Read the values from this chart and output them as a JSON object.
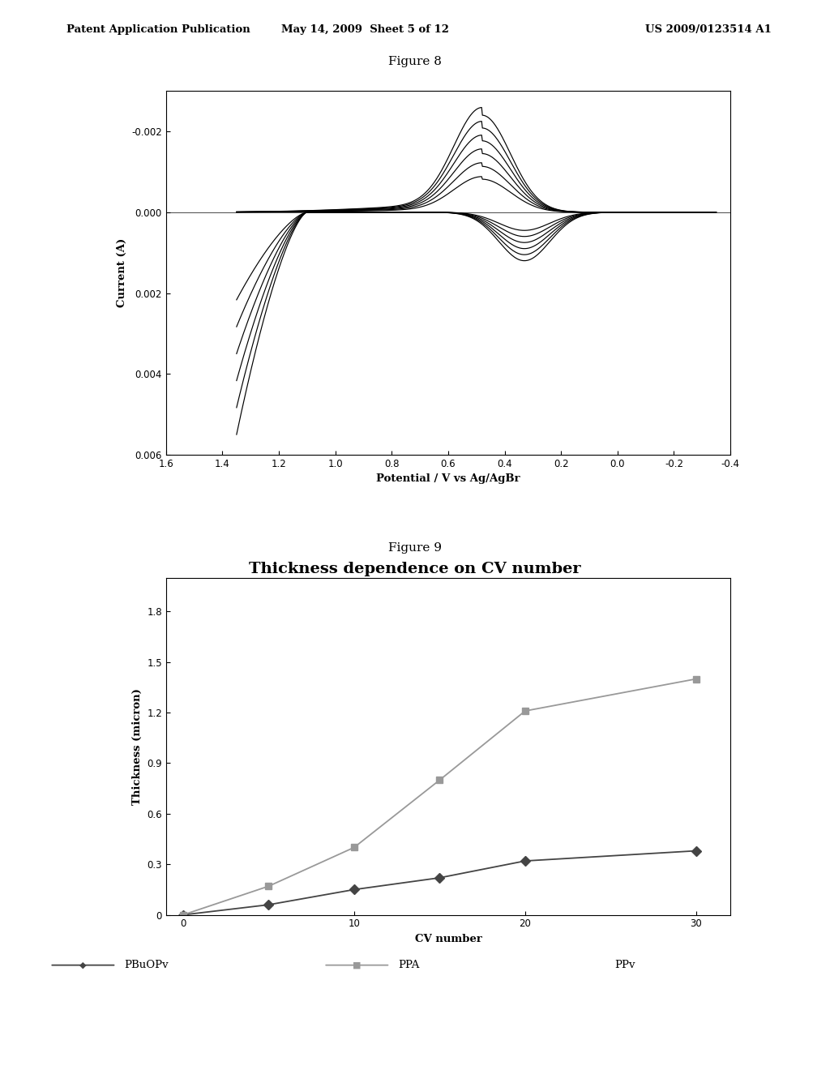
{
  "fig8": {
    "title": "Figure 8",
    "xlabel": "Potential / V vs Ag/AgBr",
    "ylabel": "Current (A)",
    "xlim": [
      1.6,
      -0.4
    ],
    "ylim": [
      0.006,
      -0.003
    ],
    "xticks": [
      1.6,
      1.4,
      1.2,
      1.0,
      0.8,
      0.6,
      0.4,
      0.2,
      0.0,
      -0.2,
      -0.4
    ],
    "yticks": [
      -0.002,
      0.0,
      0.002,
      0.004,
      0.006
    ],
    "num_cycles": 6
  },
  "fig9": {
    "title": "Figure 9",
    "chart_title": "Thickness dependence on CV number",
    "xlabel": "CV number",
    "ylabel": "Thickness (micron)",
    "xlim": [
      -1,
      32
    ],
    "ylim": [
      0,
      2.0
    ],
    "yticks": [
      0,
      0.3,
      0.6,
      0.9,
      1.2,
      1.5,
      1.8
    ],
    "xticks": [
      0,
      10,
      20,
      30
    ],
    "pbuopv_x": [
      0,
      5,
      10,
      15,
      20,
      30
    ],
    "pbuopv_y": [
      0.0,
      0.06,
      0.15,
      0.22,
      0.32,
      0.38
    ],
    "ppa_x": [
      0,
      5,
      10,
      15,
      20,
      30
    ],
    "ppa_y": [
      0.0,
      0.17,
      0.4,
      0.8,
      1.21,
      1.4
    ],
    "pbuopv_color": "#444444",
    "ppa_color": "#999999",
    "legend_labels": [
      "PBuOPv",
      "PPA",
      "PPv"
    ]
  },
  "header_left": "Patent Application Publication",
  "header_mid": "May 14, 2009  Sheet 5 of 12",
  "header_right": "US 2009/0123514 A1"
}
